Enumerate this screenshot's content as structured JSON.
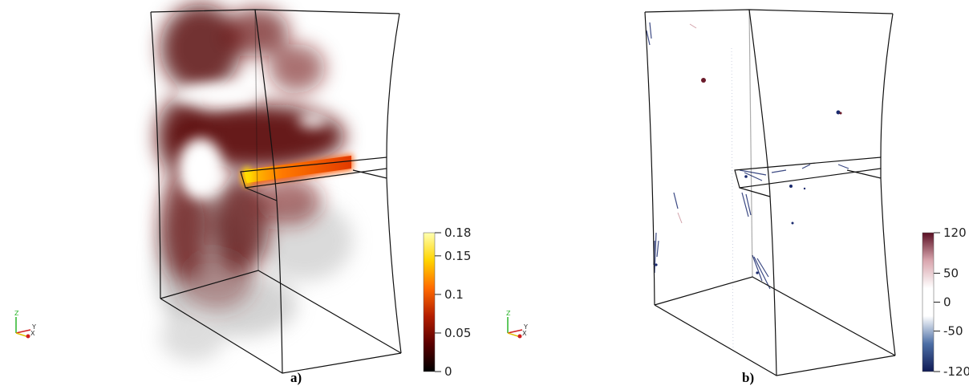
{
  "panels": [
    {
      "label": "a)",
      "colorbar": {
        "ticks": [
          {
            "value": 0.18,
            "text": "0.18"
          },
          {
            "value": 0.15,
            "text": "0.15"
          },
          {
            "value": 0.1,
            "text": "0.1"
          },
          {
            "value": 0.05,
            "text": "0.05"
          },
          {
            "value": 0,
            "text": "0"
          }
        ],
        "range": [
          0,
          0.18
        ],
        "colors": [
          "#000000",
          "#5a0000",
          "#b41e00",
          "#ff6a00",
          "#ffd400",
          "#ffffb0"
        ]
      }
    },
    {
      "label": "b)",
      "colorbar": {
        "ticks": [
          {
            "value": 120,
            "text": "120"
          },
          {
            "value": 50,
            "text": "50"
          },
          {
            "value": 0,
            "text": "0"
          },
          {
            "value": -50,
            "text": "-50"
          },
          {
            "value": -120,
            "text": "-120"
          }
        ],
        "range": [
          -120,
          120
        ],
        "colors": [
          "#0f1a55",
          "#4d6fa6",
          "#ffffff",
          "#ffffff",
          "#d9a6ae",
          "#5a0f23"
        ]
      }
    }
  ],
  "axes_triad": {
    "z": "Z",
    "y": "Y",
    "x": "X"
  },
  "colors": {
    "edge": "#111111",
    "z_axis": "#2bb52b",
    "y_axis": "#e0c000",
    "x_axis": "#d02020"
  }
}
